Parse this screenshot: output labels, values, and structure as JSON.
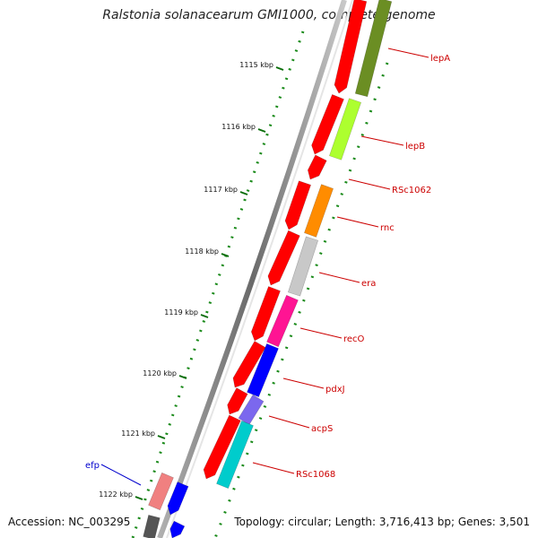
{
  "title": "Ralstonia solanacearum GMI1000, complete genome",
  "accession": "Accession: NC_003295",
  "summary": {
    "topology": "Topology: circular;",
    "length": "Length: 3,716,413 bp;",
    "genes": "Genes: 3,501"
  },
  "ticks": [
    "1115 kbp",
    "1116 kbp",
    "1117 kbp",
    "1118 kbp",
    "1119 kbp",
    "1120 kbp",
    "1121 kbp",
    "1122 kbp"
  ],
  "genes": [
    {
      "name": "lepA",
      "color": "#6b8e23",
      "label_color": "#cc0000"
    },
    {
      "name": "lepB",
      "color": "#adff2f",
      "label_color": "#cc0000"
    },
    {
      "name": "RSc1062",
      "color": "#ffffff",
      "label_color": "#cc0000"
    },
    {
      "name": "rnc",
      "color": "#ff8c00",
      "label_color": "#cc0000"
    },
    {
      "name": "era",
      "color": "#c8c8c8",
      "label_color": "#cc0000"
    },
    {
      "name": "recO",
      "color": "#ff1493",
      "label_color": "#cc0000"
    },
    {
      "name": "pdxJ",
      "color": "#0000ff",
      "label_color": "#cc0000"
    },
    {
      "name": "acpS",
      "color": "#7b68ee",
      "label_color": "#cc0000"
    },
    {
      "name": "RSc1068",
      "color": "#00cccc",
      "label_color": "#cc0000"
    },
    {
      "name": "efp",
      "color": "#f08080",
      "label_color": "#0000cc"
    }
  ],
  "colors": {
    "forward_strand": "#ff0000",
    "reverse_blue": "#0000ff",
    "backbone": "#808080",
    "tick": "#006400"
  }
}
